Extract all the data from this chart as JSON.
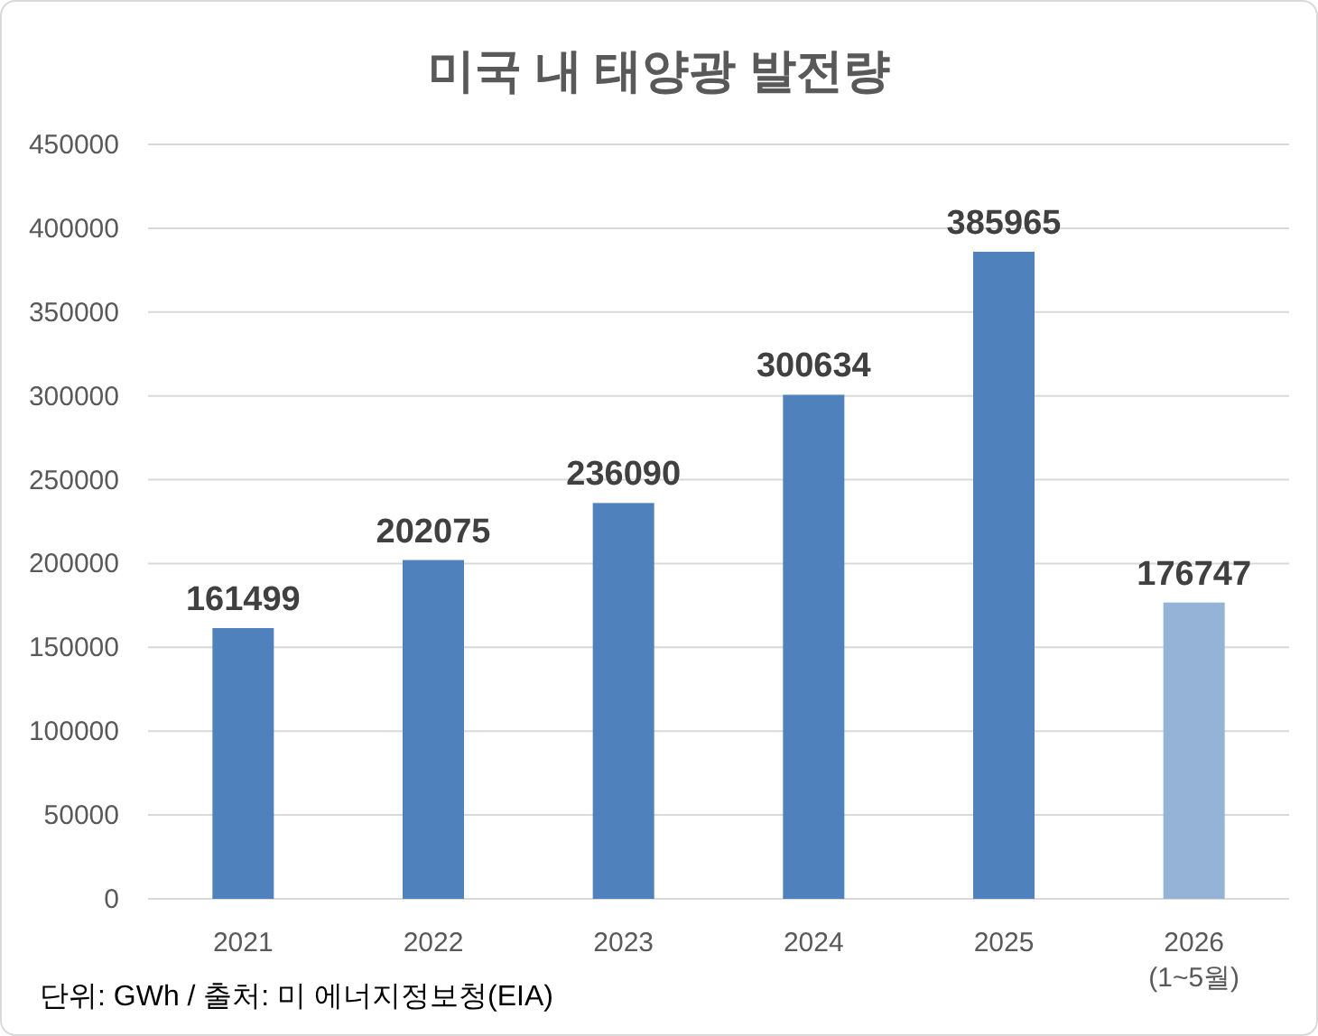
{
  "chart_data": {
    "type": "bar",
    "title": "미국 내 태양광 발전량",
    "categories": [
      "2021",
      "2022",
      "2023",
      "2024",
      "2025",
      "2026\n(1~5월)"
    ],
    "values": [
      161499,
      202075,
      236090,
      300634,
      385965,
      176747
    ],
    "colors": [
      "#4f81bd",
      "#4f81bd",
      "#4f81bd",
      "#4f81bd",
      "#4f81bd",
      "#95b3d7"
    ],
    "ylim": [
      0,
      450000
    ],
    "yticks": [
      0,
      50000,
      100000,
      150000,
      200000,
      250000,
      300000,
      350000,
      400000,
      450000
    ],
    "grid": "y",
    "data_labels": true,
    "annotations": [
      "단위: GWh / 출처: 미 에너지정보청(EIA)"
    ]
  }
}
